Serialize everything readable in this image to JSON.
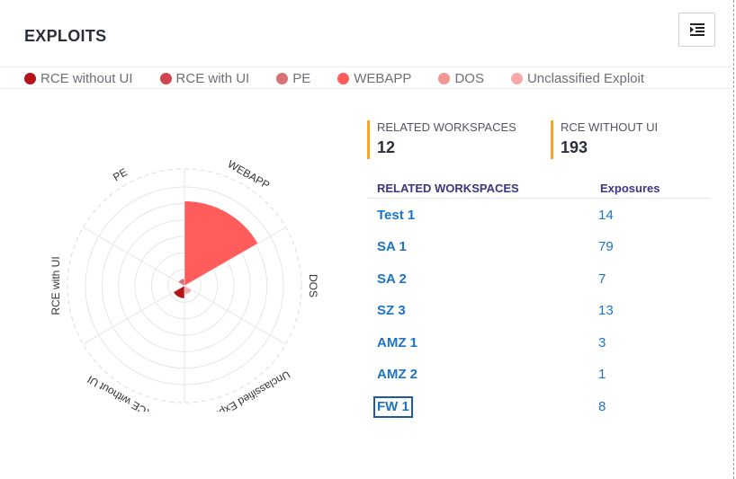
{
  "header": {
    "title": "EXPLOITS",
    "menu_icon": "indent-menu-icon"
  },
  "legend": [
    {
      "label": "RCE without UI",
      "color": "#b5121b"
    },
    {
      "label": "RCE with UI",
      "color": "#d0454c"
    },
    {
      "label": "PE",
      "color": "#d77277"
    },
    {
      "label": "WEBAPP",
      "color": "#ff5c5c"
    },
    {
      "label": "DOS",
      "color": "#f19595"
    },
    {
      "label": "Unclassified Exploit",
      "color": "#f7a9a9"
    }
  ],
  "chart_data": {
    "type": "polar-area",
    "categories": [
      "WEBAPP",
      "DOS",
      "Unclassified Exploit",
      "RCE without UI",
      "RCE with UI",
      "PE"
    ],
    "values": [
      120,
      2,
      12,
      18,
      2,
      10
    ],
    "colors": [
      "#ff5c5c",
      "#f19595",
      "#f7a9a9",
      "#b5121b",
      "#d0454c",
      "#d77277"
    ],
    "rlim": [
      0,
      140
    ],
    "grid": true
  },
  "kpis": [
    {
      "label": "RELATED WORKSPACES",
      "value": "12"
    },
    {
      "label": "RCE WITHOUT UI",
      "value": "193"
    }
  ],
  "table": {
    "headers": [
      "RELATED WORKSPACES",
      "Exposures"
    ],
    "rows": [
      {
        "name": "Test 1",
        "value": "14"
      },
      {
        "name": "SA 1",
        "value": "79"
      },
      {
        "name": "SA 2",
        "value": "7"
      },
      {
        "name": "SZ 3",
        "value": "13"
      },
      {
        "name": "AMZ 1",
        "value": "3"
      },
      {
        "name": "AMZ 2",
        "value": "1"
      },
      {
        "name": "FW 1",
        "value": "8"
      }
    ]
  }
}
